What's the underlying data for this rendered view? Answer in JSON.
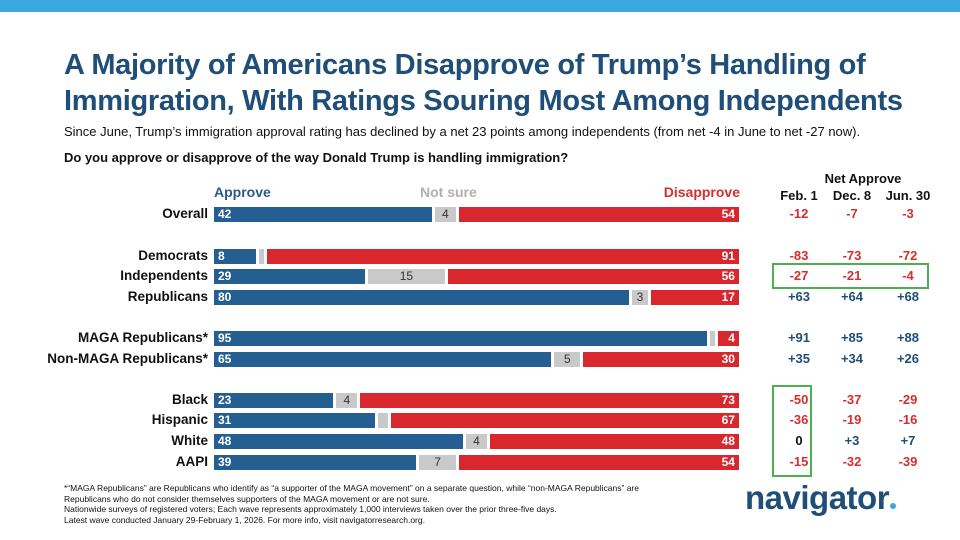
{
  "title": "A Majority of Americans Disapprove of Trump’s Handling of Immigration, With Ratings Souring Most Among Independents",
  "subtitle": "Since June, Trump’s immigration approval rating has declined by a net 23 points among independents (from net -4 in June to net -27 now).",
  "question": "Do you approve or disapprove of the way Donald Trump is handling immigration?",
  "legend": {
    "approve": "Approve",
    "not_sure": "Not sure",
    "disapprove": "Disapprove"
  },
  "net_header": "Net Approve",
  "waves": [
    "Feb. 1",
    "Dec. 8",
    "Jun. 30"
  ],
  "footnote": [
    "*“MAGA Republicans” are Republicans who identify as “a supporter of the MAGA movement” on a separate question, while “non-MAGA Republicans” are",
    "Republicans who do not consider themselves supporters of the MAGA movement or are not sure.",
    "Nationwide surveys of registered voters; Each wave represents approximately 1,000 interviews taken over the prior three-five days.",
    "Latest wave conducted January 29-February 1, 2026. For more info, visit navigatorresearch.org."
  ],
  "logo": "navigator",
  "colors": {
    "approve": "#255e91",
    "not_sure": "#c9c9c9",
    "disapprove": "#d9272e",
    "highlight": "#4caf50",
    "title": "#1f4e79",
    "accent": "#3aa7de"
  },
  "chart_data": {
    "type": "bar",
    "orientation": "horizontal-stacked",
    "title": "Do you approve or disapprove of the way Donald Trump is handling immigration?",
    "xlim": [
      0,
      100
    ],
    "categories": [
      "Overall",
      "Democrats",
      "Independents",
      "Republicans",
      "MAGA Republicans*",
      "Non-MAGA Republicans*",
      "Black",
      "Hispanic",
      "White",
      "AAPI"
    ],
    "series": [
      {
        "name": "Approve",
        "values": [
          42,
          8,
          29,
          80,
          95,
          65,
          23,
          31,
          48,
          39
        ]
      },
      {
        "name": "Not sure",
        "values": [
          4,
          1,
          15,
          3,
          1,
          5,
          4,
          2,
          4,
          7
        ],
        "labels": [
          "4",
          "",
          "15",
          "3",
          "",
          "5",
          "4",
          "",
          "4",
          "7"
        ]
      },
      {
        "name": "Disapprove",
        "values": [
          54,
          91,
          56,
          17,
          4,
          30,
          73,
          67,
          48,
          54
        ]
      }
    ],
    "net_approve": {
      "Feb. 1": [
        "-12",
        "-83",
        "-27",
        "+63",
        "+91",
        "+35",
        "-50",
        "-36",
        "0",
        "-15"
      ],
      "Dec. 8": [
        "-7",
        "-73",
        "-21",
        "+64",
        "+85",
        "+34",
        "-37",
        "-19",
        "+3",
        "-32"
      ],
      "Jun. 30": [
        "-3",
        "-72",
        "-4",
        "+68",
        "+88",
        "+26",
        "-29",
        "-16",
        "+7",
        "-39"
      ]
    },
    "highlights": [
      "Independents row (all waves)",
      "Feb. 1 column for Black, Hispanic, White, AAPI"
    ]
  }
}
